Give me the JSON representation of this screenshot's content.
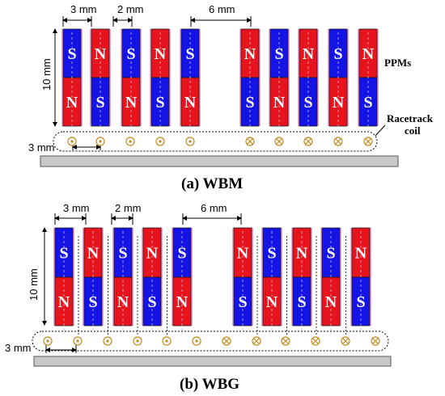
{
  "colors": {
    "north": "#e8141d",
    "south": "#1414e6",
    "glow": "#f3a6d6",
    "coil_symbol": "#c58a1d",
    "base_plate": "#c8c8c8"
  },
  "panels": [
    {
      "id": "wbm",
      "caption": "(a) WBM",
      "top_poles": [
        "S",
        "N",
        "S",
        "N",
        "S",
        "N",
        "S",
        "N",
        "S",
        "N"
      ],
      "bottom_poles": [
        "N",
        "S",
        "N",
        "S",
        "N",
        "S",
        "N",
        "S",
        "N",
        "S"
      ],
      "coil_dirs": [
        "out",
        "out",
        "out",
        "out",
        "out",
        "in",
        "in",
        "in",
        "in",
        "in"
      ],
      "dims": {
        "pitch": "3 mm",
        "gap": "2 mm",
        "group_gap": "6 mm",
        "height": "10 mm",
        "offset": "3 mm"
      },
      "labels": {
        "ppm": "PPMs",
        "coil_line1": "Racetrack",
        "coil_line2": "coil"
      }
    },
    {
      "id": "wbg",
      "caption": "(b) WBG",
      "top_poles": [
        "S",
        "N",
        "S",
        "N",
        "S",
        "N",
        "S",
        "N",
        "S",
        "N"
      ],
      "bottom_poles": [
        "N",
        "S",
        "N",
        "S",
        "N",
        "S",
        "N",
        "S",
        "N",
        "S"
      ],
      "coil_dirs": [
        "out",
        "out",
        "out",
        "out",
        "out",
        "out",
        "in",
        "in",
        "in",
        "in",
        "in",
        "in"
      ],
      "dims": {
        "pitch": "3 mm",
        "gap": "2 mm",
        "group_gap": "6 mm",
        "height": "10 mm",
        "offset": "3 mm"
      }
    }
  ]
}
